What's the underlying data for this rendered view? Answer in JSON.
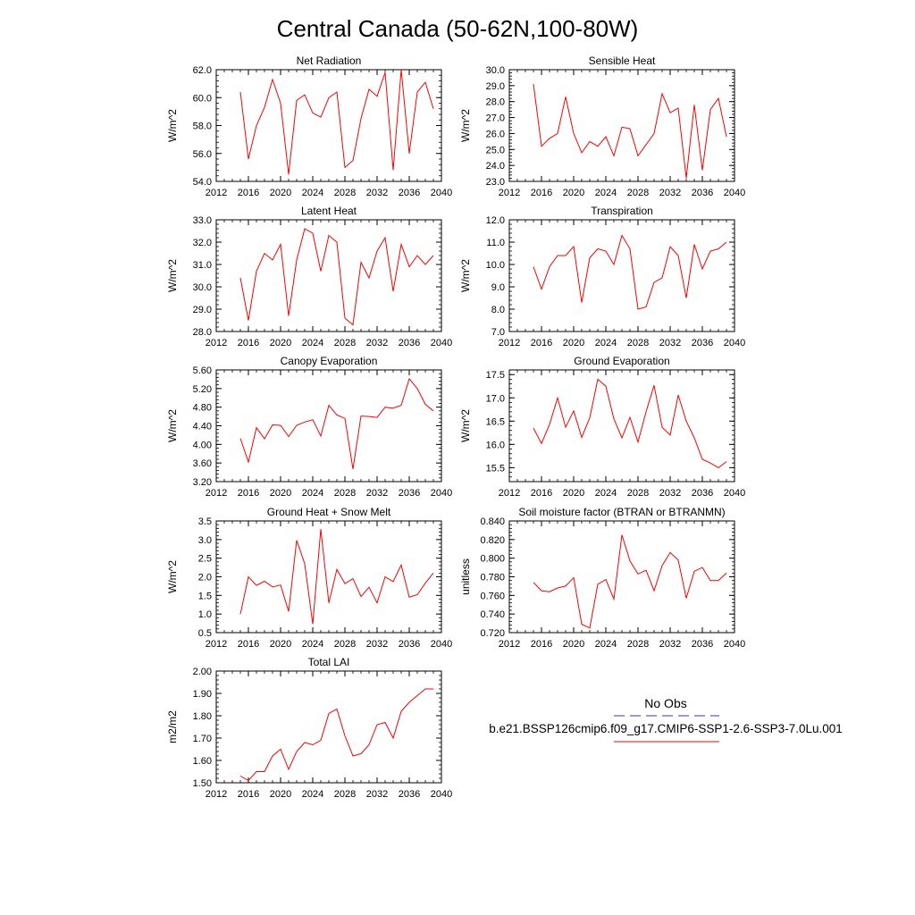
{
  "page": {
    "title": "Central Canada (50-62N,100-80W)"
  },
  "legend": {
    "obs_label": "No Obs",
    "model_label": "b.e21.BSSP126cmip6.f09_g17.CMIP6-SSP1-2.6-SSP3-7.0Lu.001",
    "obs_color": "#3a3aa0",
    "model_color": "#ff0000"
  },
  "chart_data": [
    {
      "type": "line",
      "title": "Net Radiation",
      "ylabel": "W/m^2",
      "xlim": [
        2012,
        2040
      ],
      "ylim": [
        54,
        62
      ],
      "xticks": [
        "2012",
        "2016",
        "2020",
        "2024",
        "2028",
        "2032",
        "2036",
        "2040"
      ],
      "yticks": [
        "54.0",
        "56.0",
        "58.0",
        "60.0",
        "62.0"
      ],
      "series": [
        {
          "color": "#ff0000",
          "x": [
            2015,
            2016,
            2017,
            2018,
            2019,
            2020,
            2021,
            2022,
            2023,
            2024,
            2025,
            2026,
            2027,
            2028,
            2029,
            2030,
            2031,
            2032,
            2033,
            2034,
            2035,
            2036,
            2037,
            2038,
            2039
          ],
          "y": [
            60.4,
            55.6,
            58.0,
            59.3,
            61.3,
            59.6,
            54.5,
            59.8,
            60.2,
            58.9,
            58.6,
            60.0,
            60.4,
            55.0,
            55.5,
            58.5,
            60.6,
            60.1,
            61.8,
            54.8,
            62.0,
            56.0,
            60.4,
            61.1,
            59.2
          ]
        }
      ]
    },
    {
      "type": "line",
      "title": "Sensible Heat",
      "ylabel": "W/m^2",
      "xlim": [
        2012,
        2040
      ],
      "ylim": [
        23,
        30
      ],
      "xticks": [
        "2012",
        "2016",
        "2020",
        "2024",
        "2028",
        "2032",
        "2036",
        "2040"
      ],
      "yticks": [
        "23.0",
        "24.0",
        "25.0",
        "26.0",
        "27.0",
        "28.0",
        "29.0",
        "30.0"
      ],
      "series": [
        {
          "color": "#ff0000",
          "x": [
            2015,
            2016,
            2017,
            2018,
            2019,
            2020,
            2021,
            2022,
            2023,
            2024,
            2025,
            2026,
            2027,
            2028,
            2029,
            2030,
            2031,
            2032,
            2033,
            2034,
            2035,
            2036,
            2037,
            2038,
            2039
          ],
          "y": [
            29.1,
            25.2,
            25.7,
            26.0,
            28.3,
            26.0,
            24.8,
            25.5,
            25.2,
            25.8,
            24.6,
            26.4,
            26.3,
            24.6,
            25.3,
            26.0,
            28.5,
            27.3,
            27.6,
            23.2,
            27.8,
            23.7,
            27.5,
            28.2,
            25.8
          ]
        }
      ]
    },
    {
      "type": "line",
      "title": "Latent Heat",
      "ylabel": "W/m^2",
      "xlim": [
        2012,
        2040
      ],
      "ylim": [
        28,
        33
      ],
      "xticks": [
        "2012",
        "2016",
        "2020",
        "2024",
        "2028",
        "2032",
        "2036",
        "2040"
      ],
      "yticks": [
        "28.0",
        "29.0",
        "30.0",
        "31.0",
        "32.0",
        "33.0"
      ],
      "series": [
        {
          "color": "#ff0000",
          "x": [
            2015,
            2016,
            2017,
            2018,
            2019,
            2020,
            2021,
            2022,
            2023,
            2024,
            2025,
            2026,
            2027,
            2028,
            2029,
            2030,
            2031,
            2032,
            2033,
            2034,
            2035,
            2036,
            2037,
            2038,
            2039
          ],
          "y": [
            30.4,
            28.5,
            30.7,
            31.5,
            31.2,
            31.9,
            28.7,
            31.2,
            32.6,
            32.4,
            30.7,
            32.3,
            32.0,
            28.6,
            28.3,
            31.1,
            30.4,
            31.6,
            32.2,
            29.8,
            31.9,
            30.9,
            31.4,
            31.0,
            31.4
          ]
        }
      ]
    },
    {
      "type": "line",
      "title": "Transpiration",
      "ylabel": "W/m^2",
      "xlim": [
        2012,
        2040
      ],
      "ylim": [
        7,
        12
      ],
      "xticks": [
        "2012",
        "2016",
        "2020",
        "2024",
        "2028",
        "2032",
        "2036",
        "2040"
      ],
      "yticks": [
        "7.0",
        "8.0",
        "9.0",
        "10.0",
        "11.0",
        "12.0"
      ],
      "series": [
        {
          "color": "#ff0000",
          "x": [
            2015,
            2016,
            2017,
            2018,
            2019,
            2020,
            2021,
            2022,
            2023,
            2024,
            2025,
            2026,
            2027,
            2028,
            2029,
            2030,
            2031,
            2032,
            2033,
            2034,
            2035,
            2036,
            2037,
            2038,
            2039
          ],
          "y": [
            9.9,
            8.9,
            9.9,
            10.4,
            10.4,
            10.8,
            8.3,
            10.3,
            10.7,
            10.6,
            10.0,
            11.3,
            10.7,
            8.0,
            8.1,
            9.2,
            9.4,
            10.8,
            10.4,
            8.5,
            10.9,
            9.8,
            10.6,
            10.7,
            11.0
          ]
        }
      ]
    },
    {
      "type": "line",
      "title": "Canopy Evaporation",
      "ylabel": "W/m^2",
      "xlim": [
        2012,
        2040
      ],
      "ylim": [
        3.2,
        5.6
      ],
      "xticks": [
        "2012",
        "2016",
        "2020",
        "2024",
        "2028",
        "2032",
        "2036",
        "2040"
      ],
      "yticks": [
        "3.20",
        "3.60",
        "4.00",
        "4.40",
        "4.80",
        "5.20",
        "5.60"
      ],
      "series": [
        {
          "color": "#ff0000",
          "x": [
            2015,
            2016,
            2017,
            2018,
            2019,
            2020,
            2021,
            2022,
            2023,
            2024,
            2025,
            2026,
            2027,
            2028,
            2029,
            2030,
            2031,
            2032,
            2033,
            2034,
            2035,
            2036,
            2037,
            2038,
            2039
          ],
          "y": [
            4.13,
            3.62,
            4.36,
            4.12,
            4.42,
            4.41,
            4.17,
            4.41,
            4.48,
            4.53,
            4.18,
            4.84,
            4.63,
            4.56,
            3.47,
            4.61,
            4.6,
            4.58,
            4.8,
            4.78,
            4.84,
            5.41,
            5.2,
            4.86,
            4.72
          ]
        }
      ]
    },
    {
      "type": "line",
      "title": "Ground Evaporation",
      "ylabel": "W/m^2",
      "xlim": [
        2012,
        2040
      ],
      "ylim": [
        15.2,
        17.6
      ],
      "xticks": [
        "2012",
        "2016",
        "2020",
        "2024",
        "2028",
        "2032",
        "2036",
        "2040"
      ],
      "yticks": [
        "15.5",
        "16.0",
        "16.5",
        "17.0",
        "17.5"
      ],
      "series": [
        {
          "color": "#ff0000",
          "x": [
            2015,
            2016,
            2017,
            2018,
            2019,
            2020,
            2021,
            2022,
            2023,
            2024,
            2025,
            2026,
            2027,
            2028,
            2029,
            2030,
            2031,
            2032,
            2033,
            2034,
            2035,
            2036,
            2037,
            2038,
            2039
          ],
          "y": [
            16.35,
            16.02,
            16.43,
            17.0,
            16.37,
            16.72,
            16.15,
            16.57,
            17.4,
            17.25,
            16.55,
            16.14,
            16.58,
            16.05,
            16.7,
            17.27,
            16.37,
            16.2,
            17.06,
            16.5,
            16.14,
            15.68,
            15.6,
            15.5,
            15.63
          ]
        }
      ]
    },
    {
      "type": "line",
      "title": "Ground Heat + Snow Melt",
      "ylabel": "W/m^2",
      "xlim": [
        2012,
        2040
      ],
      "ylim": [
        0.5,
        3.5
      ],
      "xticks": [
        "2012",
        "2016",
        "2020",
        "2024",
        "2028",
        "2032",
        "2036",
        "2040"
      ],
      "yticks": [
        "0.5",
        "1.0",
        "1.5",
        "2.0",
        "2.5",
        "3.0",
        "3.5"
      ],
      "series": [
        {
          "color": "#ff0000",
          "x": [
            2015,
            2016,
            2017,
            2018,
            2019,
            2020,
            2021,
            2022,
            2023,
            2024,
            2025,
            2026,
            2027,
            2028,
            2029,
            2030,
            2031,
            2032,
            2033,
            2034,
            2035,
            2036,
            2037,
            2038,
            2039
          ],
          "y": [
            1.0,
            2.0,
            1.77,
            1.88,
            1.73,
            1.78,
            1.07,
            2.98,
            2.35,
            0.73,
            3.28,
            1.3,
            2.2,
            1.82,
            1.95,
            1.47,
            1.72,
            1.3,
            2.0,
            1.87,
            2.32,
            1.45,
            1.52,
            1.83,
            2.1
          ]
        }
      ]
    },
    {
      "type": "line",
      "title": "Soil moisture factor (BTRAN or BTRANMN)",
      "ylabel": "unitless",
      "xlim": [
        2012,
        2040
      ],
      "ylim": [
        0.72,
        0.84
      ],
      "xticks": [
        "2012",
        "2016",
        "2020",
        "2024",
        "2028",
        "2032",
        "2036",
        "2040"
      ],
      "yticks": [
        "0.720",
        "0.740",
        "0.760",
        "0.780",
        "0.800",
        "0.820",
        "0.840"
      ],
      "series": [
        {
          "color": "#ff0000",
          "x": [
            2015,
            2016,
            2017,
            2018,
            2019,
            2020,
            2021,
            2022,
            2023,
            2024,
            2025,
            2026,
            2027,
            2028,
            2029,
            2030,
            2031,
            2032,
            2033,
            2034,
            2035,
            2036,
            2037,
            2038,
            2039
          ],
          "y": [
            0.774,
            0.765,
            0.764,
            0.768,
            0.77,
            0.779,
            0.729,
            0.725,
            0.772,
            0.777,
            0.756,
            0.825,
            0.797,
            0.783,
            0.787,
            0.765,
            0.792,
            0.806,
            0.798,
            0.757,
            0.786,
            0.79,
            0.776,
            0.776,
            0.784
          ]
        }
      ]
    },
    {
      "type": "line",
      "title": "Total LAI",
      "ylabel": "m2/m2",
      "xlim": [
        2012,
        2040
      ],
      "ylim": [
        1.5,
        2.0
      ],
      "xticks": [
        "2012",
        "2016",
        "2020",
        "2024",
        "2028",
        "2032",
        "2036",
        "2040"
      ],
      "yticks": [
        "1.50",
        "1.60",
        "1.70",
        "1.80",
        "1.90",
        "2.00"
      ],
      "series": [
        {
          "color": "#ff0000",
          "x": [
            2015,
            2016,
            2017,
            2018,
            2019,
            2020,
            2021,
            2022,
            2023,
            2024,
            2025,
            2026,
            2027,
            2028,
            2029,
            2030,
            2031,
            2032,
            2033,
            2034,
            2035,
            2036,
            2037,
            2038,
            2039
          ],
          "y": [
            1.53,
            1.51,
            1.55,
            1.55,
            1.62,
            1.65,
            1.56,
            1.64,
            1.68,
            1.67,
            1.69,
            1.81,
            1.83,
            1.71,
            1.62,
            1.63,
            1.67,
            1.76,
            1.77,
            1.7,
            1.82,
            1.86,
            1.89,
            1.92,
            1.92
          ]
        }
      ]
    }
  ]
}
